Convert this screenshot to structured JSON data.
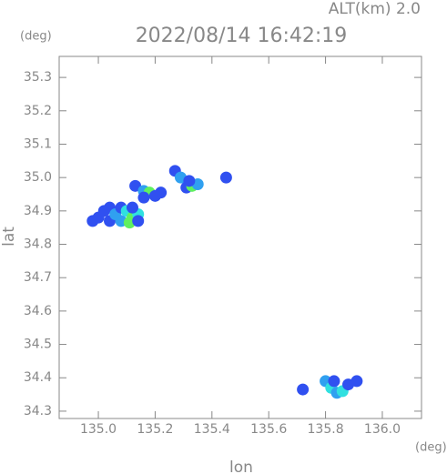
{
  "chart_data": {
    "type": "scatter",
    "title": "2022/08/14 16:42:19",
    "subtitle": "ALT(km) 2.0",
    "y_unit": "(deg)",
    "x_unit": "(deg)",
    "x_label": "lon",
    "y_label": "lat",
    "xlim": [
      134.862,
      136.138
    ],
    "ylim": [
      34.278,
      35.363
    ],
    "xticks": [
      {
        "value": 135,
        "label": "135.0"
      },
      135.2,
      135.4,
      135.6,
      135.8,
      {
        "value": 136,
        "label": "136.0"
      }
    ],
    "yticks": [
      34.3,
      34.4,
      34.5,
      34.6,
      34.7,
      34.8,
      34.9,
      {
        "value": 35,
        "label": "35.0"
      },
      35.1,
      35.2,
      35.3
    ],
    "x": [
      134.98,
      135.0,
      135.02,
      135.04,
      135.04,
      135.06,
      135.08,
      135.08,
      135.1,
      135.12,
      135.11,
      135.14,
      135.14,
      135.12,
      135.13,
      135.16,
      135.18,
      135.2,
      135.22,
      135.16,
      135.27,
      135.29,
      135.31,
      135.33,
      135.35,
      135.32,
      135.45,
      135.8,
      135.82,
      135.84,
      135.86,
      135.88,
      135.91,
      135.83,
      135.72
    ],
    "y": [
      34.87,
      34.88,
      34.9,
      34.91,
      34.87,
      34.89,
      34.91,
      34.87,
      34.9,
      34.88,
      34.865,
      34.89,
      34.87,
      34.91,
      34.975,
      34.96,
      34.955,
      34.945,
      34.955,
      34.94,
      35.02,
      35.0,
      34.97,
      34.975,
      34.98,
      34.99,
      35.0,
      34.39,
      34.37,
      34.355,
      34.36,
      34.38,
      34.39,
      34.39,
      34.365
    ],
    "colors": [
      "#3050f0",
      "#3050f0",
      "#3050f0",
      "#3050f0",
      "#3050f0",
      "#30a0f0",
      "#3050f0",
      "#30a0f0",
      "#30e0e0",
      "#60f060",
      "#60f060",
      "#30e0e0",
      "#3050f0",
      "#3050f0",
      "#3050f0",
      "#30a0f0",
      "#60f060",
      "#3050f0",
      "#3050f0",
      "#3050f0",
      "#3050f0",
      "#30a0f0",
      "#3050f0",
      "#60f060",
      "#30a0f0",
      "#3050f0",
      "#3050f0",
      "#30a0f0",
      "#30e0e0",
      "#30a0f0",
      "#30e0e0",
      "#3050f0",
      "#3050f0",
      "#3050f0",
      "#3050f0"
    ]
  }
}
